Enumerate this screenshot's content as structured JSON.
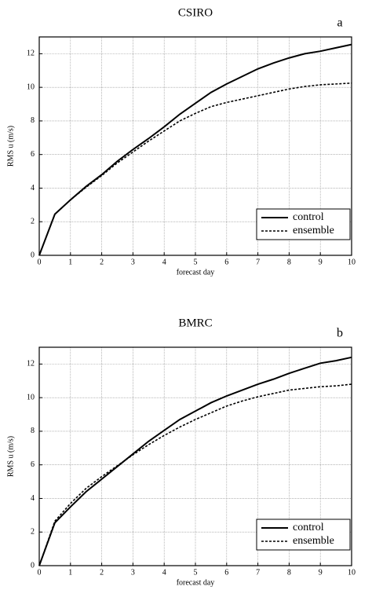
{
  "chart_data": [
    {
      "type": "line",
      "title": "CSIRO",
      "annotation": "a",
      "x_label": "forecast day",
      "y_label": "RMS u (m/s)",
      "x": [
        0,
        0.5,
        1,
        1.5,
        2,
        2.5,
        3,
        3.5,
        4,
        4.5,
        5,
        5.5,
        6,
        6.5,
        7,
        7.5,
        8,
        8.5,
        9,
        9.5,
        10
      ],
      "series": [
        {
          "name": "control",
          "color": "#000000",
          "line_style": "solid",
          "values": [
            0,
            2.45,
            3.3,
            4.1,
            4.8,
            5.6,
            6.3,
            6.95,
            7.65,
            8.4,
            9.05,
            9.7,
            10.2,
            10.65,
            11.1,
            11.45,
            11.75,
            12.0,
            12.15,
            12.35,
            12.55
          ]
        },
        {
          "name": "ensemble",
          "color": "#000000",
          "line_style": "dashed",
          "values": [
            0,
            2.45,
            3.3,
            4.05,
            4.75,
            5.5,
            6.15,
            6.8,
            7.4,
            8.0,
            8.45,
            8.85,
            9.1,
            9.3,
            9.5,
            9.7,
            9.9,
            10.05,
            10.15,
            10.2,
            10.25
          ]
        }
      ],
      "xlim": [
        0,
        10
      ],
      "xticks": [
        0,
        1,
        2,
        3,
        4,
        5,
        6,
        7,
        8,
        9,
        10
      ],
      "ylim": [
        0,
        13
      ],
      "yticks": [
        0,
        2,
        4,
        6,
        8,
        10,
        12
      ],
      "grid": true,
      "legend": "lower right"
    },
    {
      "type": "line",
      "title": "BMRC",
      "annotation": "b",
      "x_label": "forecast day",
      "y_label": "RMS u (m/s)",
      "x": [
        0,
        0.5,
        1,
        1.5,
        2,
        2.5,
        3,
        3.5,
        4,
        4.5,
        5,
        5.5,
        6,
        6.5,
        7,
        7.5,
        8,
        8.5,
        9,
        9.5,
        10
      ],
      "series": [
        {
          "name": "control",
          "color": "#000000",
          "line_style": "solid",
          "values": [
            0,
            2.55,
            3.5,
            4.4,
            5.15,
            5.9,
            6.65,
            7.4,
            8.05,
            8.7,
            9.2,
            9.7,
            10.1,
            10.45,
            10.8,
            11.1,
            11.45,
            11.75,
            12.05,
            12.2,
            12.4
          ]
        },
        {
          "name": "ensemble",
          "color": "#000000",
          "line_style": "dashed",
          "values": [
            0,
            2.65,
            3.7,
            4.6,
            5.3,
            5.95,
            6.6,
            7.2,
            7.75,
            8.25,
            8.7,
            9.1,
            9.5,
            9.8,
            10.05,
            10.25,
            10.45,
            10.55,
            10.65,
            10.7,
            10.8
          ]
        }
      ],
      "xlim": [
        0,
        10
      ],
      "xticks": [
        0,
        1,
        2,
        3,
        4,
        5,
        6,
        7,
        8,
        9,
        10
      ],
      "ylim": [
        0,
        13
      ],
      "yticks": [
        0,
        2,
        4,
        6,
        8,
        10,
        12
      ],
      "grid": true,
      "legend": "lower right"
    }
  ]
}
